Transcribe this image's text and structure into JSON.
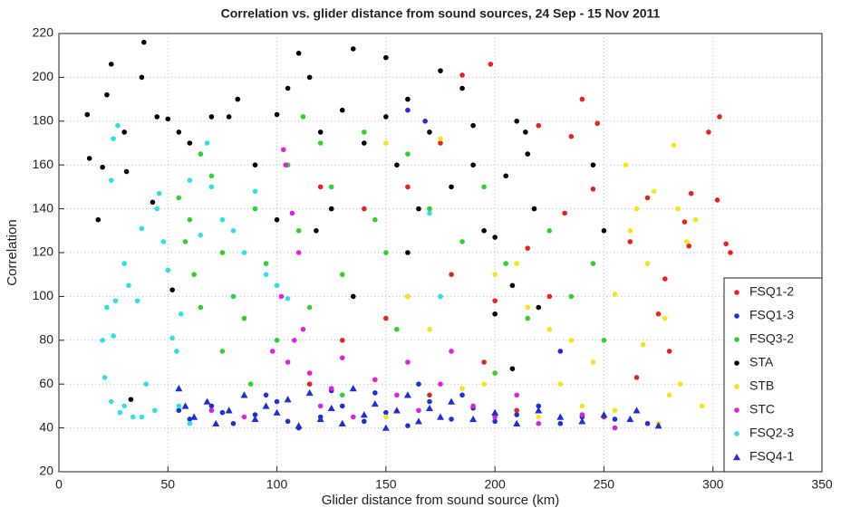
{
  "chart_data": {
    "type": "scatter",
    "title": "Correlation vs. glider distance from sound sources, 24 Sep - 15 Nov 2011",
    "x_label": "Glider distance from sound source (km)",
    "y_label": "Correlation",
    "xlim": [
      0,
      350
    ],
    "xticks": [
      0,
      50,
      100,
      150,
      200,
      250,
      300,
      350
    ],
    "ylim": [
      20,
      220
    ],
    "yticks": [
      20,
      40,
      60,
      80,
      100,
      120,
      140,
      160,
      180,
      200,
      220
    ],
    "grid": true,
    "legend": "lower right",
    "series": [
      {
        "name": "FSQ1-2",
        "color": "#e8231f",
        "marker": "circle",
        "x": [
          185,
          198,
          240,
          303,
          298,
          247,
          235,
          220,
          290,
          302,
          306,
          308,
          287,
          289,
          278,
          262,
          270,
          245,
          232,
          215,
          200,
          180,
          160,
          150,
          130,
          140,
          120,
          275,
          280,
          265,
          250,
          170,
          210,
          115,
          195,
          225,
          160,
          175
        ],
        "values": [
          201,
          206,
          190,
          182,
          175,
          179,
          173,
          178,
          147,
          144,
          124,
          120,
          134,
          123,
          108,
          125,
          145,
          149,
          138,
          122,
          98,
          110,
          100,
          90,
          80,
          140,
          150,
          92,
          75,
          63,
          45,
          55,
          48,
          60,
          70,
          100,
          150,
          170
        ]
      },
      {
        "name": "FSQ1-3",
        "color": "#1f2fd6",
        "marker": "circle",
        "x": [
          55,
          60,
          70,
          80,
          90,
          100,
          110,
          120,
          130,
          140,
          150,
          160,
          170,
          180,
          190,
          200,
          210,
          220,
          230,
          240,
          255,
          270,
          95,
          125,
          185,
          165,
          230,
          160,
          168,
          105,
          145,
          75
        ],
        "values": [
          48,
          44,
          50,
          42,
          46,
          52,
          40,
          45,
          50,
          43,
          47,
          41,
          52,
          44,
          49,
          43,
          46,
          50,
          42,
          45,
          44,
          42,
          55,
          57,
          55,
          60,
          75,
          185,
          180,
          43,
          56,
          47
        ]
      },
      {
        "name": "FSQ3-2",
        "color": "#2fd12f",
        "marker": "circle",
        "x": [
          55,
          60,
          65,
          70,
          75,
          80,
          62,
          58,
          85,
          90,
          95,
          100,
          105,
          110,
          115,
          120,
          125,
          130,
          140,
          145,
          150,
          155,
          160,
          170,
          175,
          185,
          195,
          205,
          215,
          225,
          235,
          245,
          250,
          88,
          75,
          130,
          200,
          100,
          65,
          112
        ],
        "values": [
          145,
          135,
          165,
          155,
          120,
          100,
          110,
          125,
          90,
          140,
          115,
          105,
          160,
          130,
          95,
          170,
          150,
          110,
          175,
          135,
          120,
          85,
          165,
          140,
          100,
          125,
          150,
          115,
          90,
          130,
          100,
          115,
          80,
          60,
          75,
          55,
          65,
          80,
          95,
          182
        ]
      },
      {
        "name": "STA",
        "color": "#000000",
        "marker": "circle",
        "x": [
          13,
          14,
          18,
          20,
          22,
          24,
          30,
          31,
          38,
          39,
          45,
          50,
          52,
          55,
          60,
          70,
          78,
          82,
          90,
          100,
          100,
          105,
          110,
          115,
          120,
          125,
          130,
          135,
          140,
          150,
          150,
          155,
          160,
          165,
          170,
          175,
          180,
          185,
          190,
          195,
          200,
          205,
          210,
          215,
          218,
          220,
          208,
          200,
          245,
          250,
          118,
          135,
          160,
          33,
          43,
          190,
          214,
          208
        ],
        "values": [
          183,
          163,
          135,
          159,
          192,
          206,
          175,
          157,
          200,
          216,
          182,
          181,
          103,
          175,
          170,
          182,
          182,
          190,
          160,
          183,
          135,
          195,
          211,
          200,
          175,
          140,
          185,
          213,
          170,
          209,
          182,
          160,
          190,
          140,
          175,
          203,
          150,
          195,
          160,
          130,
          127,
          155,
          180,
          165,
          140,
          95,
          105,
          92,
          160,
          130,
          130,
          100,
          120,
          53,
          143,
          178,
          175,
          67
        ]
      },
      {
        "name": "STB",
        "color": "#f5e61a",
        "marker": "circle",
        "x": [
          150,
          175,
          200,
          210,
          215,
          225,
          230,
          240,
          255,
          260,
          265,
          262,
          270,
          273,
          278,
          282,
          284,
          288,
          292,
          285,
          280,
          275,
          295,
          268,
          255,
          245,
          185,
          170,
          160,
          195,
          220,
          235,
          150
        ],
        "values": [
          170,
          172,
          110,
          115,
          95,
          85,
          60,
          50,
          48,
          160,
          140,
          130,
          115,
          148,
          90,
          169,
          140,
          125,
          135,
          60,
          55,
          42,
          50,
          78,
          101,
          70,
          58,
          85,
          100,
          60,
          45,
          80,
          45
        ]
      },
      {
        "name": "STC",
        "color": "#e01fe0",
        "marker": "circle",
        "x": [
          103,
          104,
          107,
          110,
          102,
          98,
          105,
          112,
          115,
          120,
          125,
          135,
          145,
          155,
          165,
          175,
          180,
          190,
          200,
          210,
          220,
          240,
          255,
          70,
          85,
          130,
          160,
          108
        ],
        "values": [
          167,
          160,
          138,
          120,
          100,
          75,
          70,
          85,
          65,
          50,
          58,
          45,
          62,
          55,
          48,
          60,
          75,
          50,
          45,
          55,
          42,
          46,
          40,
          48,
          45,
          72,
          70,
          80
        ]
      },
      {
        "name": "FSQ2-3",
        "color": "#2fe0e8",
        "marker": "circle",
        "x": [
          25,
          27,
          24,
          30,
          32,
          22,
          26,
          20,
          25,
          21,
          24,
          28,
          30,
          34,
          36,
          38,
          40,
          45,
          46,
          48,
          50,
          52,
          54,
          56,
          60,
          65,
          68,
          70,
          75,
          80,
          85,
          90,
          95,
          100,
          105,
          170,
          175,
          38,
          44,
          60,
          55
        ],
        "values": [
          172,
          178,
          153,
          115,
          105,
          95,
          98,
          80,
          82,
          63,
          52,
          47,
          50,
          45,
          98,
          131,
          60,
          140,
          147,
          125,
          112,
          81,
          75,
          92,
          153,
          128,
          170,
          150,
          135,
          130,
          120,
          148,
          110,
          105,
          99,
          138,
          100,
          45,
          48,
          42,
          50
        ]
      },
      {
        "name": "FSQ4-1",
        "color": "#1f2fd6",
        "marker": "triangle",
        "x": [
          55,
          58,
          62,
          68,
          72,
          78,
          85,
          90,
          95,
          100,
          105,
          110,
          115,
          120,
          125,
          130,
          135,
          140,
          145,
          150,
          155,
          160,
          165,
          170,
          175,
          180,
          190,
          200,
          210,
          220,
          230,
          240,
          250,
          262,
          275,
          265
        ],
        "values": [
          58,
          50,
          45,
          52,
          42,
          48,
          55,
          44,
          50,
          47,
          53,
          41,
          56,
          44,
          49,
          42,
          58,
          46,
          51,
          40,
          48,
          55,
          43,
          49,
          45,
          52,
          44,
          47,
          42,
          48,
          45,
          43,
          46,
          44,
          41,
          48
        ]
      }
    ]
  }
}
